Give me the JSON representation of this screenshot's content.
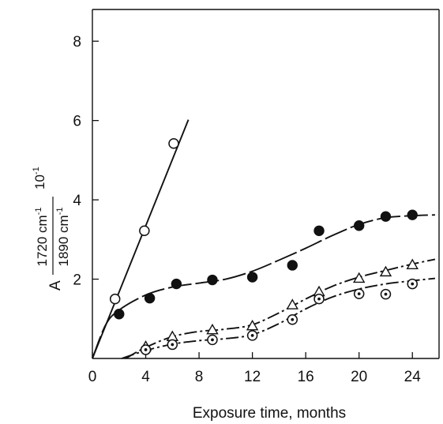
{
  "chart_data": {
    "type": "scatter",
    "xlabel": "Exposure time, months",
    "ylabel": {
      "prefix": "A",
      "numerator": "1720 cm",
      "numerator_sup": "-1",
      "denominator": "1890 cm",
      "denominator_sup": "-1",
      "factor": "10",
      "factor_sup": "-1"
    },
    "xlim": [
      0,
      26
    ],
    "ylim": [
      0,
      8.8
    ],
    "xticks": [
      "0",
      "4",
      "8",
      "12",
      "16",
      "20",
      "24"
    ],
    "yticks": [
      "2",
      "4",
      "6",
      "8"
    ],
    "grid": false,
    "legend": "none",
    "series": [
      {
        "marker": "open-circle",
        "points": [
          [
            1.7,
            1.5
          ],
          [
            3.9,
            3.22
          ],
          [
            6.1,
            5.42
          ]
        ],
        "fit": {
          "style": "solid",
          "points": [
            [
              0,
              0
            ],
            [
              7.2,
              6.02
            ]
          ]
        }
      },
      {
        "marker": "filled-circle",
        "points": [
          [
            2.0,
            1.12
          ],
          [
            4.3,
            1.52
          ],
          [
            6.3,
            1.88
          ],
          [
            9.0,
            1.98
          ],
          [
            12.0,
            2.05
          ],
          [
            15.0,
            2.35
          ],
          [
            17.0,
            3.22
          ],
          [
            20.0,
            3.35
          ],
          [
            22.0,
            3.58
          ],
          [
            24.0,
            3.62
          ]
        ],
        "fit": {
          "style": "long-dash",
          "points": [
            [
              0,
              0
            ],
            [
              1,
              0.85
            ],
            [
              2,
              1.22
            ],
            [
              4,
              1.6
            ],
            [
              6,
              1.8
            ],
            [
              8,
              1.9
            ],
            [
              10,
              2.0
            ],
            [
              12,
              2.2
            ],
            [
              14,
              2.48
            ],
            [
              16,
              2.78
            ],
            [
              18,
              3.1
            ],
            [
              20,
              3.38
            ],
            [
              22,
              3.55
            ],
            [
              24,
              3.6
            ],
            [
              25.7,
              3.62
            ]
          ]
        }
      },
      {
        "marker": "open-triangle",
        "points": [
          [
            4.0,
            0.3
          ],
          [
            6.0,
            0.55
          ],
          [
            9.0,
            0.72
          ],
          [
            12.0,
            0.82
          ],
          [
            15.0,
            1.35
          ],
          [
            17.0,
            1.68
          ],
          [
            20.0,
            2.02
          ],
          [
            22.0,
            2.18
          ],
          [
            24.0,
            2.36
          ]
        ],
        "fit": {
          "style": "dash-dot",
          "points": [
            [
              2.5,
              0
            ],
            [
              4,
              0.28
            ],
            [
              6,
              0.55
            ],
            [
              8,
              0.68
            ],
            [
              10,
              0.74
            ],
            [
              12,
              0.85
            ],
            [
              14,
              1.15
            ],
            [
              16,
              1.5
            ],
            [
              18,
              1.82
            ],
            [
              20,
              2.05
            ],
            [
              22,
              2.22
            ],
            [
              24,
              2.38
            ],
            [
              25.7,
              2.5
            ]
          ]
        }
      },
      {
        "marker": "dotted-circle",
        "points": [
          [
            4.0,
            0.22
          ],
          [
            6.0,
            0.35
          ],
          [
            9.0,
            0.47
          ],
          [
            12.0,
            0.58
          ],
          [
            15.0,
            0.98
          ],
          [
            17.0,
            1.5
          ],
          [
            20.0,
            1.63
          ],
          [
            22.0,
            1.62
          ],
          [
            24.0,
            1.88
          ]
        ],
        "fit": {
          "style": "dash-dot",
          "points": [
            [
              2.2,
              0
            ],
            [
              4,
              0.2
            ],
            [
              6,
              0.36
            ],
            [
              8,
              0.45
            ],
            [
              10,
              0.5
            ],
            [
              12,
              0.6
            ],
            [
              14,
              0.88
            ],
            [
              16,
              1.25
            ],
            [
              18,
              1.55
            ],
            [
              20,
              1.75
            ],
            [
              22,
              1.88
            ],
            [
              24,
              1.96
            ],
            [
              25.7,
              2.02
            ]
          ]
        }
      }
    ]
  }
}
